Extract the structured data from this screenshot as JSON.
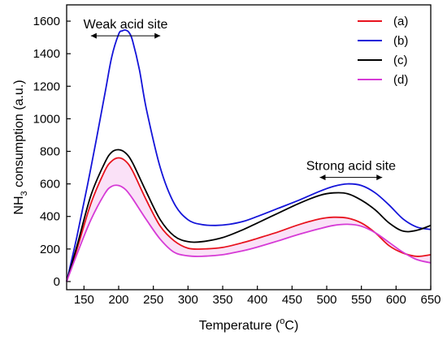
{
  "chart_data": {
    "type": "line",
    "xlabel_main": "Temperature (",
    "xlabel_sup": "o",
    "xlabel_end": "C)",
    "ylabel_pre": "NH",
    "ylabel_sub": "3",
    "ylabel_post": " consumption (a.u.)",
    "xlim": [
      125,
      650
    ],
    "ylim": [
      -50,
      1700
    ],
    "xticks": [
      150,
      200,
      250,
      300,
      350,
      400,
      450,
      500,
      550,
      600,
      650
    ],
    "yticks": [
      0,
      200,
      400,
      600,
      800,
      1000,
      1200,
      1400,
      1600
    ],
    "legend_position": "top-right",
    "annotations": {
      "weak": {
        "text": "Weak acid site",
        "x_range": [
          160,
          260
        ],
        "arrow_y": 1510
      },
      "strong": {
        "text": "Strong acid site",
        "x_range": [
          490,
          580
        ],
        "arrow_y": 640
      }
    },
    "series": [
      {
        "name": "(a)",
        "color": "#e8131e",
        "x": [
          125,
          140,
          160,
          180,
          190,
          200,
          210,
          220,
          240,
          260,
          280,
          300,
          320,
          350,
          380,
          400,
          430,
          460,
          490,
          510,
          530,
          550,
          570,
          590,
          610,
          630,
          650
        ],
        "y": [
          0,
          200,
          480,
          680,
          740,
          760,
          740,
          680,
          500,
          340,
          250,
          205,
          200,
          210,
          240,
          265,
          305,
          350,
          385,
          395,
          390,
          360,
          300,
          220,
          175,
          155,
          165
        ]
      },
      {
        "name": "(b)",
        "color": "#1414d9",
        "x": [
          125,
          140,
          160,
          180,
          190,
          200,
          205,
          210,
          215,
          220,
          230,
          240,
          260,
          280,
          300,
          320,
          340,
          360,
          380,
          400,
          430,
          460,
          490,
          510,
          530,
          550,
          570,
          590,
          610,
          630,
          650
        ],
        "y": [
          0,
          280,
          700,
          1150,
          1380,
          1520,
          1540,
          1545,
          1530,
          1480,
          1300,
          1060,
          700,
          480,
          380,
          350,
          345,
          352,
          370,
          400,
          450,
          500,
          555,
          585,
          600,
          590,
          545,
          470,
          385,
          335,
          320
        ]
      },
      {
        "name": "(c)",
        "color": "#000000",
        "x": [
          125,
          140,
          160,
          180,
          190,
          200,
          210,
          220,
          240,
          260,
          280,
          300,
          320,
          350,
          380,
          400,
          430,
          460,
          490,
          510,
          530,
          550,
          570,
          590,
          610,
          630,
          650
        ],
        "y": [
          0,
          220,
          530,
          730,
          795,
          810,
          790,
          730,
          550,
          380,
          280,
          245,
          245,
          270,
          320,
          360,
          420,
          480,
          530,
          545,
          540,
          500,
          440,
          360,
          310,
          315,
          345
        ]
      },
      {
        "name": "(d)",
        "color": "#d63ad6",
        "x": [
          125,
          140,
          160,
          180,
          190,
          200,
          210,
          220,
          240,
          260,
          280,
          300,
          320,
          350,
          380,
          400,
          430,
          460,
          490,
          510,
          530,
          550,
          570,
          590,
          610,
          630,
          650
        ],
        "y": [
          0,
          170,
          380,
          540,
          585,
          590,
          565,
          510,
          380,
          260,
          180,
          158,
          155,
          165,
          190,
          212,
          250,
          290,
          325,
          345,
          352,
          340,
          300,
          240,
          180,
          135,
          115
        ]
      }
    ]
  }
}
